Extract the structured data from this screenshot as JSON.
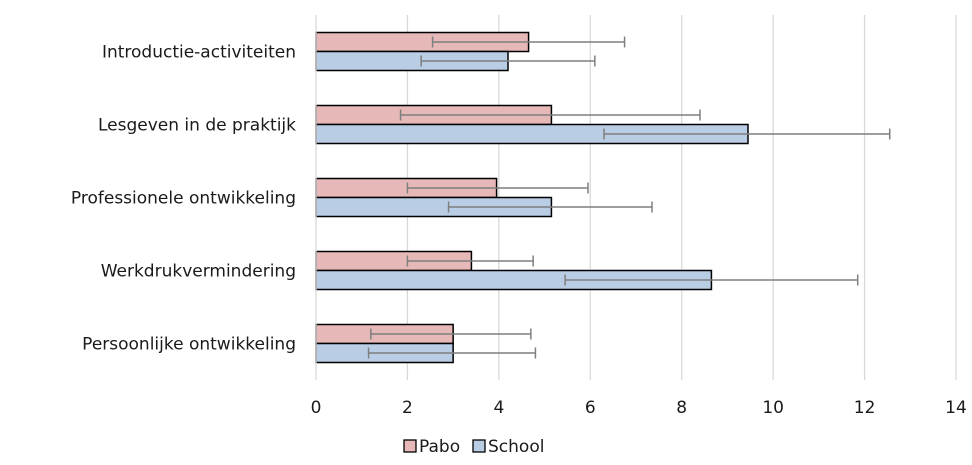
{
  "chart_data": {
    "type": "bar",
    "orientation": "horizontal",
    "categories": [
      "Introductie-activiteiten",
      "Lesgeven in de praktijk",
      "Professionele ontwikkeling",
      "Werkdrukvermindering",
      "Persoonlijke ontwikkeling"
    ],
    "series": [
      {
        "name": "Pabo",
        "color": "#e6b9b8",
        "values": [
          4.65,
          5.15,
          3.95,
          3.4,
          3.0
        ],
        "error_low": [
          2.55,
          1.85,
          2.0,
          2.0,
          1.2
        ],
        "error_high": [
          6.75,
          8.4,
          5.95,
          4.75,
          4.7
        ]
      },
      {
        "name": "School",
        "color": "#b9cde5",
        "values": [
          4.2,
          9.45,
          5.15,
          8.65,
          3.0
        ],
        "error_low": [
          2.3,
          6.3,
          2.9,
          5.45,
          1.15
        ],
        "error_high": [
          6.1,
          12.55,
          7.35,
          11.85,
          4.8
        ]
      }
    ],
    "xlim": [
      0,
      14
    ],
    "xticks": [
      "0",
      "2",
      "4",
      "6",
      "8",
      "10",
      "12",
      "14"
    ],
    "grid": "vertical",
    "legend_position": "bottom",
    "title": "",
    "xlabel": "",
    "ylabel": ""
  }
}
